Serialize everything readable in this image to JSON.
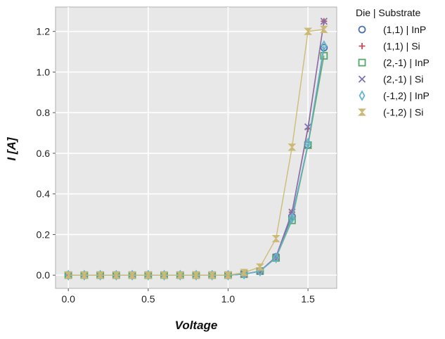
{
  "chart_data": {
    "type": "line",
    "xlabel": "Voltage",
    "ylabel": "I [A]",
    "xlim": [
      -0.08,
      1.68
    ],
    "ylim": [
      -0.065,
      1.32
    ],
    "xticks": [
      "0.0",
      "0.5",
      "1.0",
      "1.5"
    ],
    "xtick_values": [
      0.0,
      0.5,
      1.0,
      1.5
    ],
    "yticks": [
      "0.0",
      "0.2",
      "0.4",
      "0.6",
      "0.8",
      "1.0",
      "1.2"
    ],
    "ytick_values": [
      0.0,
      0.2,
      0.4,
      0.6,
      0.8,
      1.0,
      1.2
    ],
    "grid": true,
    "background": "#e8e8e8",
    "legend_title": "Die | Substrate",
    "legend_position": "outside-right",
    "x": [
      0.0,
      0.1,
      0.2,
      0.3,
      0.4,
      0.5,
      0.6,
      0.7,
      0.8,
      0.9,
      1.0,
      1.1,
      1.2,
      1.3,
      1.4,
      1.5,
      1.6
    ],
    "series": [
      {
        "name": "(1,1) | InP",
        "marker": "circle",
        "color": "#4c72b0",
        "values": [
          0,
          0,
          0,
          0,
          0,
          0,
          0,
          0,
          0,
          0,
          0,
          0.005,
          0.02,
          0.09,
          0.29,
          0.64,
          1.12
        ]
      },
      {
        "name": "(1,1) | Si",
        "marker": "plus",
        "color": "#c44e52",
        "values": [
          0,
          0,
          0,
          0,
          0,
          0,
          0,
          0,
          0,
          0,
          0,
          0.005,
          0.02,
          0.09,
          0.31,
          0.72,
          1.25
        ]
      },
      {
        "name": "(2,-1) | InP",
        "marker": "square",
        "color": "#55a868",
        "values": [
          0,
          0,
          0,
          0,
          0,
          0,
          0,
          0,
          0,
          0,
          0,
          0.005,
          0.02,
          0.085,
          0.27,
          0.64,
          1.08
        ]
      },
      {
        "name": "(2,-1) | Si",
        "marker": "x",
        "color": "#8172b2",
        "values": [
          0,
          0,
          0,
          0,
          0,
          0,
          0,
          0,
          0,
          0,
          0,
          0.005,
          0.02,
          0.09,
          0.31,
          0.73,
          1.25
        ]
      },
      {
        "name": "(-1,2) | InP",
        "marker": "diamond",
        "color": "#64b5cd",
        "values": [
          0,
          0,
          0,
          0,
          0,
          0,
          0,
          0,
          0,
          0,
          0,
          0.005,
          0.02,
          0.085,
          0.28,
          0.65,
          1.13
        ]
      },
      {
        "name": "(-1,2) | Si",
        "marker": "hourglass",
        "color": "#ccb974",
        "values": [
          0,
          0,
          0,
          0,
          0,
          0,
          0,
          0,
          0,
          0,
          0,
          0.013,
          0.04,
          0.18,
          0.63,
          1.2,
          1.21
        ]
      }
    ]
  }
}
